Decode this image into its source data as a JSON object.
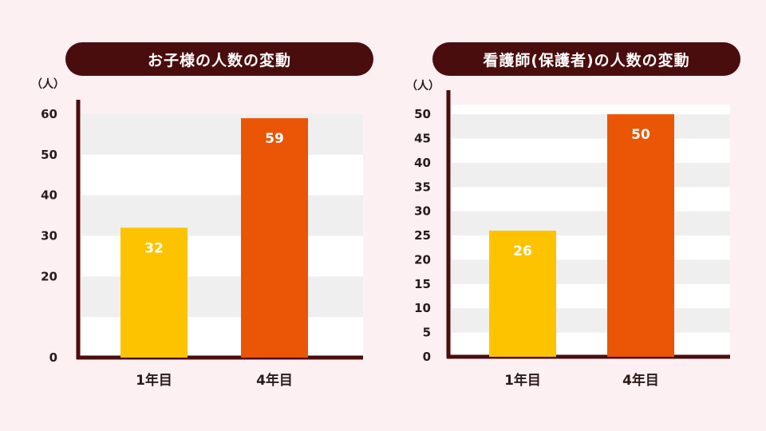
{
  "chart_data": [
    {
      "type": "bar",
      "title": "お子様の人数の変動",
      "unit_label": "（人）",
      "categories": [
        "1年目",
        "4年目"
      ],
      "values": [
        32,
        59
      ],
      "bar_colors": [
        "#fdc300",
        "#ea5506"
      ],
      "value_labels": [
        "32",
        "59"
      ],
      "ylim": [
        0,
        60
      ],
      "yticks": [
        0,
        20,
        30,
        40,
        50,
        60
      ],
      "stripe_step": 10,
      "grid": false,
      "legend": "none"
    },
    {
      "type": "bar",
      "title": "看護師(保護者)の人数の変動",
      "unit_label": "（人）",
      "categories": [
        "1年目",
        "4年目"
      ],
      "values": [
        26,
        50
      ],
      "bar_colors": [
        "#fdc300",
        "#ea5506"
      ],
      "value_labels": [
        "26",
        "50"
      ],
      "ylim": [
        0,
        52
      ],
      "yticks": [
        0,
        5,
        10,
        15,
        20,
        25,
        30,
        35,
        40,
        45,
        50
      ],
      "stripe_step": 5,
      "grid": false,
      "legend": "none"
    }
  ],
  "colors": {
    "background": "#fdf0f2",
    "title_bg": "#4a0d0d",
    "axis": "#4a0d0d",
    "stripe_dark": "#efefef",
    "stripe_light": "#ffffff"
  }
}
